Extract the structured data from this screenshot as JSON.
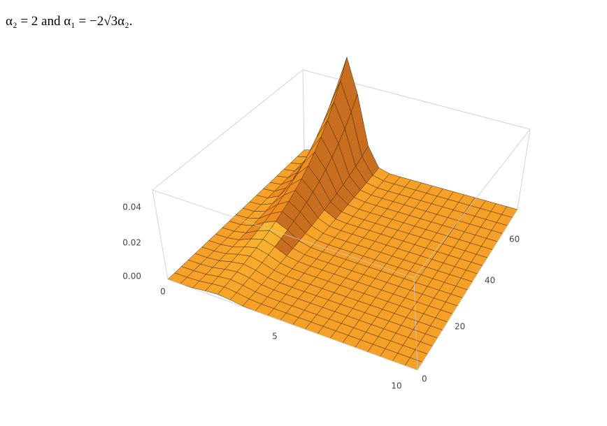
{
  "caption": "α₂ = 2 and α₁ = −2√3α₂.",
  "figure": {
    "z_ticks": [
      "0.04",
      "0.02",
      "0.00"
    ],
    "x_ticks": [
      "0",
      "5",
      "10"
    ],
    "y_ticks": [
      "60",
      "40",
      "20",
      "0"
    ]
  }
}
